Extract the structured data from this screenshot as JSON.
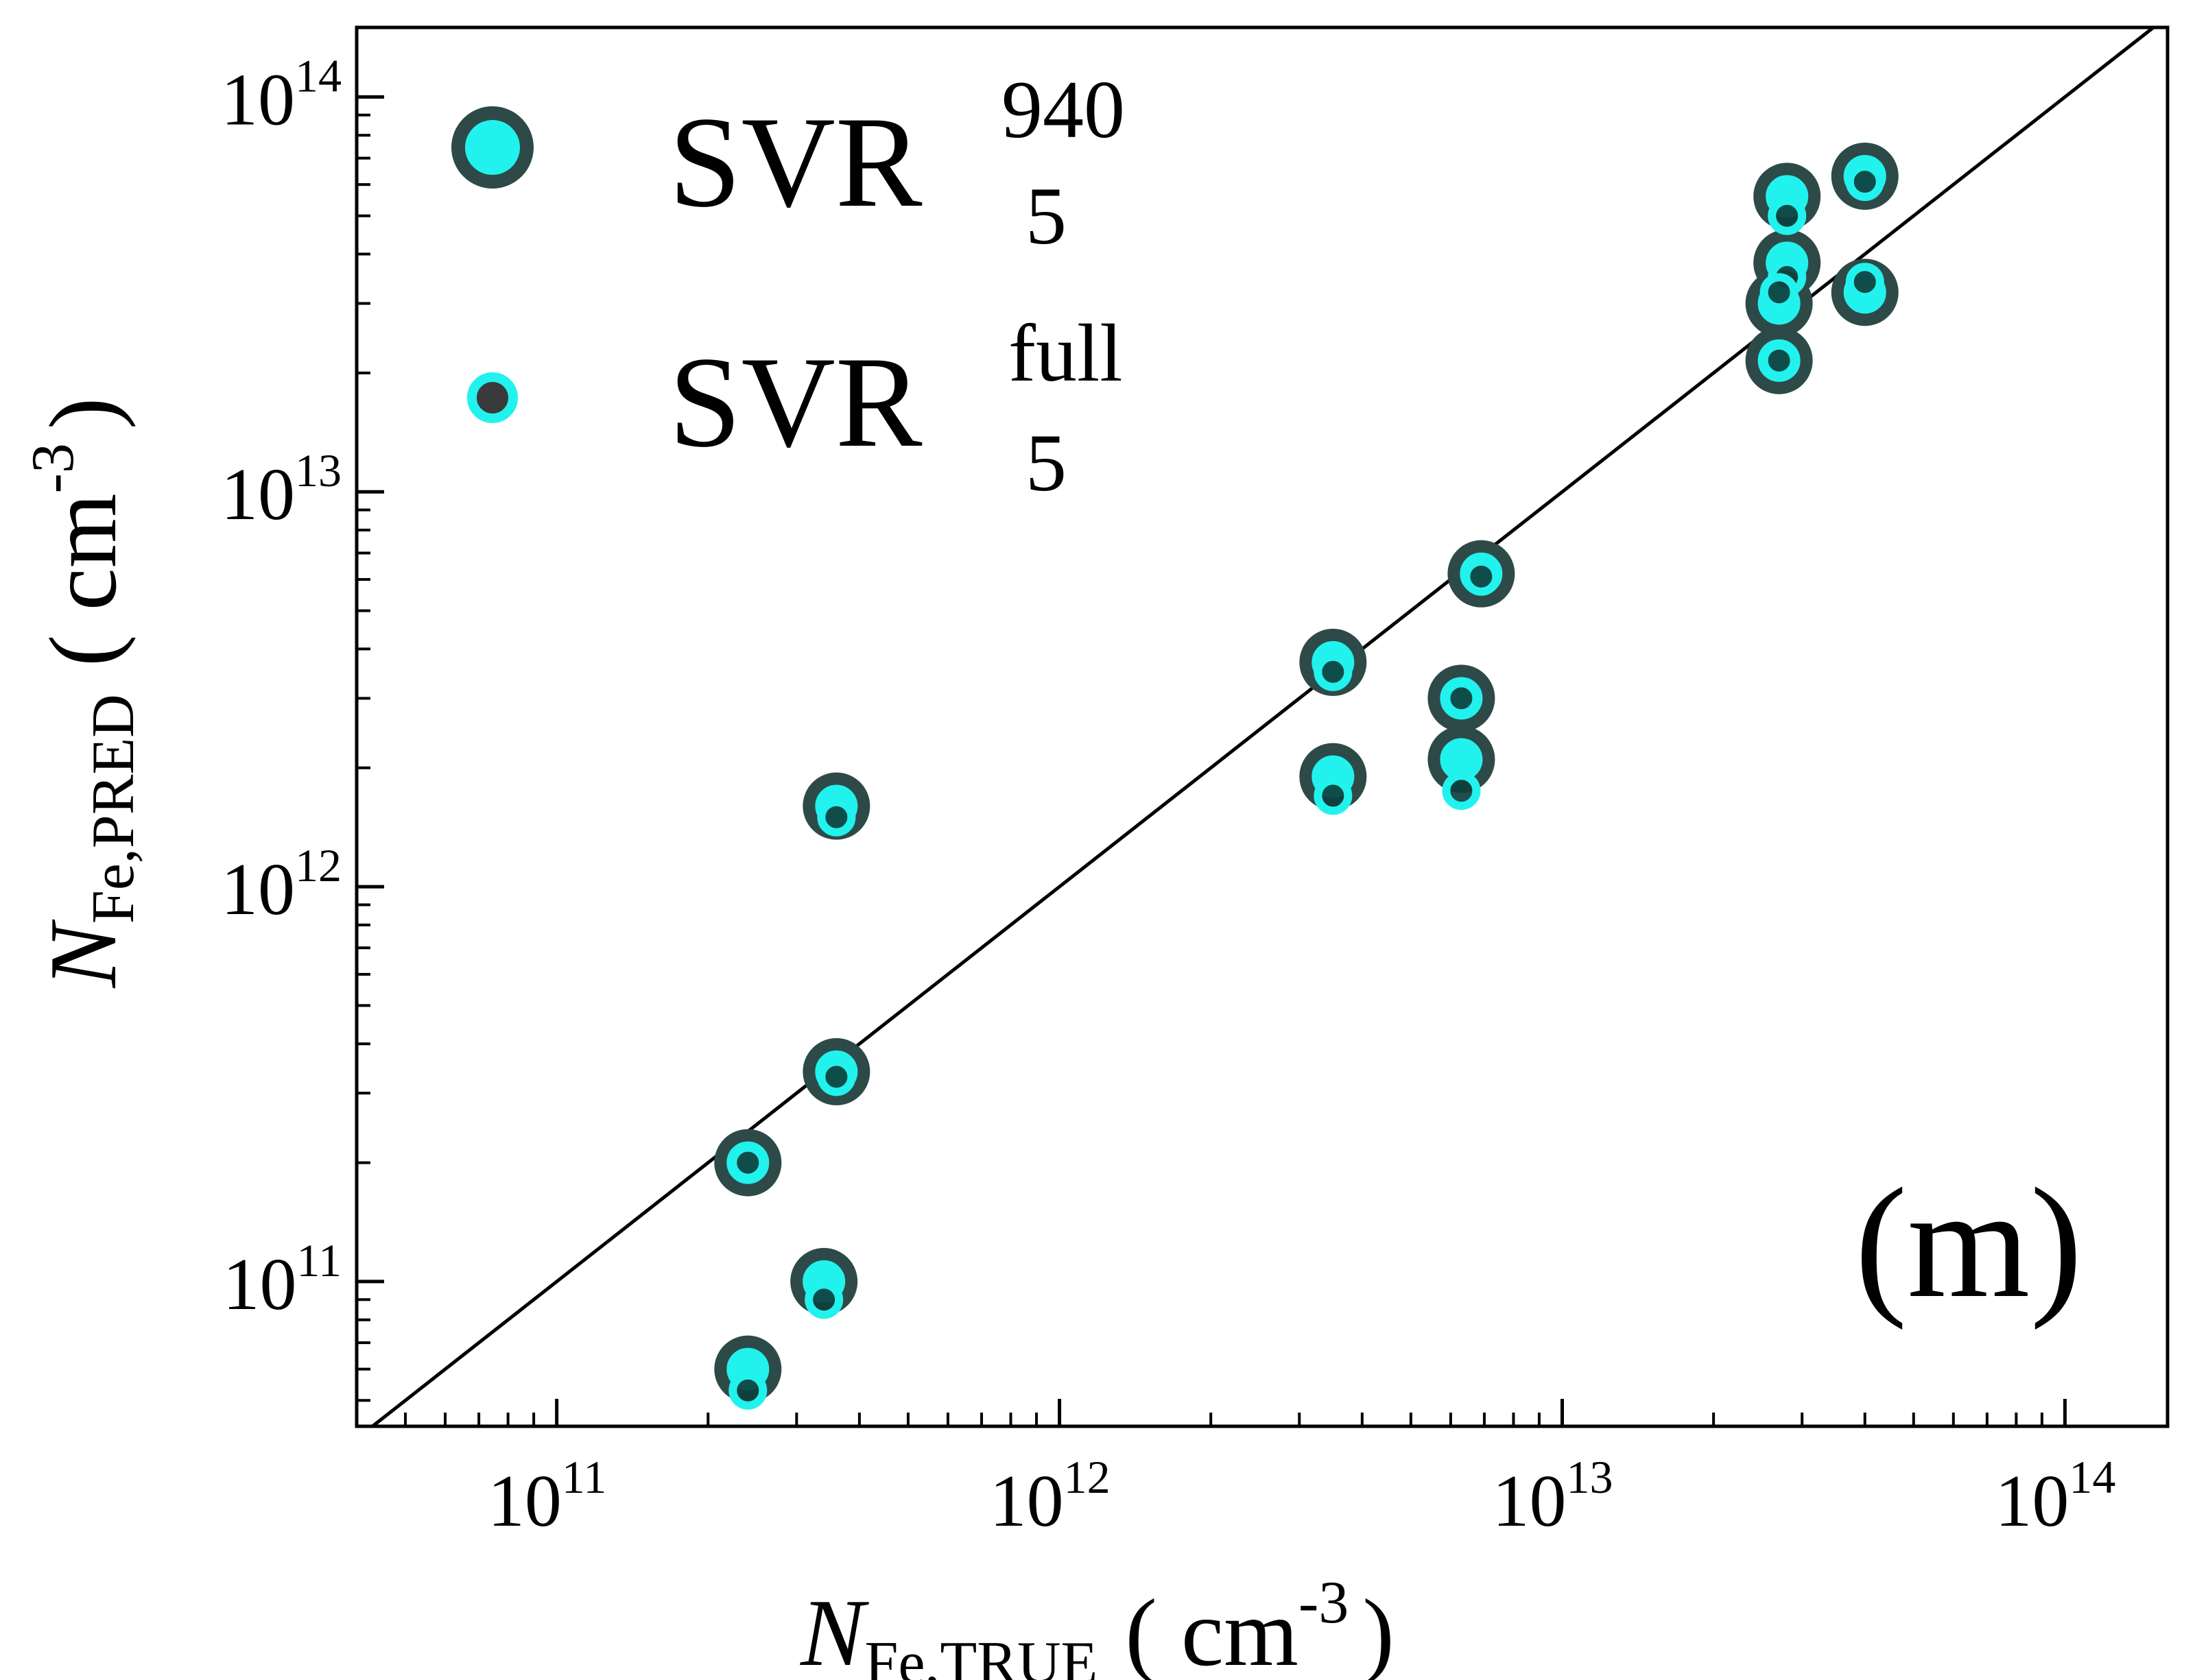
{
  "chart_data": {
    "type": "scatter",
    "x_scale": "log",
    "y_scale": "log",
    "xlim": [
      40000000000.0,
      160000000000000.0
    ],
    "ylim": [
      43000000000.0,
      150000000000000.0
    ],
    "x_ticks": [
      {
        "base": "10",
        "exp": "11",
        "value": 100000000000.0
      },
      {
        "base": "10",
        "exp": "12",
        "value": 1000000000000.0
      },
      {
        "base": "10",
        "exp": "13",
        "value": 10000000000000.0
      },
      {
        "base": "10",
        "exp": "14",
        "value": 100000000000000.0
      }
    ],
    "y_ticks": [
      {
        "base": "10",
        "exp": "11",
        "value": 100000000000.0
      },
      {
        "base": "10",
        "exp": "12",
        "value": 1000000000000.0
      },
      {
        "base": "10",
        "exp": "13",
        "value": 10000000000000.0
      },
      {
        "base": "10",
        "exp": "14",
        "value": 100000000000000.0
      }
    ],
    "xlabel": {
      "main": "N",
      "sub": "Fe,TRUE",
      "unit_open": "( cm",
      "unit_exp": "-3",
      "unit_close": ")"
    },
    "ylabel": {
      "main": "N",
      "sub": "Fe,PRED",
      "unit_open": "( cm",
      "unit_exp": "-3",
      "unit_close": ")"
    },
    "reference_line": "y = x",
    "panel_label": "(m)",
    "legend_position": "top-left",
    "grid": false,
    "series": [
      {
        "name": "SVR",
        "superscript": "940",
        "subscript": "5",
        "marker": "large",
        "fill_color": "#22F2EE",
        "edge_color": "#2E4A48",
        "points": [
          {
            "x": 240000000000.0,
            "y": 200000000000.0
          },
          {
            "x": 240000000000.0,
            "y": 60000000000.0
          },
          {
            "x": 340000000000.0,
            "y": 100000000000.0
          },
          {
            "x": 360000000000.0,
            "y": 340000000000.0
          },
          {
            "x": 360000000000.0,
            "y": 1600000000000.0
          },
          {
            "x": 3500000000000.0,
            "y": 3700000000000.0
          },
          {
            "x": 3500000000000.0,
            "y": 1900000000000.0
          },
          {
            "x": 6300000000000.0,
            "y": 3000000000000.0
          },
          {
            "x": 6300000000000.0,
            "y": 2100000000000.0
          },
          {
            "x": 6900000000000.0,
            "y": 6200000000000.0
          },
          {
            "x": 28000000000000.0,
            "y": 56000000000000.0
          },
          {
            "x": 28000000000000.0,
            "y": 38000000000000.0
          },
          {
            "x": 27000000000000.0,
            "y": 30000000000000.0
          },
          {
            "x": 27000000000000.0,
            "y": 21500000000000.0
          },
          {
            "x": 40000000000000.0,
            "y": 63000000000000.0
          },
          {
            "x": 40000000000000.0,
            "y": 32000000000000.0
          }
        ]
      },
      {
        "name": "SVR",
        "superscript": "full",
        "subscript": "5",
        "marker": "small",
        "fill_color": "#0E3F3D",
        "edge_color": "#22F2EE",
        "points": [
          {
            "x": 240000000000.0,
            "y": 200000000000.0
          },
          {
            "x": 240000000000.0,
            "y": 53000000000.0
          },
          {
            "x": 340000000000.0,
            "y": 90000000000.0
          },
          {
            "x": 360000000000.0,
            "y": 330000000000.0
          },
          {
            "x": 360000000000.0,
            "y": 1500000000000.0
          },
          {
            "x": 3500000000000.0,
            "y": 3500000000000.0
          },
          {
            "x": 3500000000000.0,
            "y": 1700000000000.0
          },
          {
            "x": 6300000000000.0,
            "y": 3000000000000.0
          },
          {
            "x": 6300000000000.0,
            "y": 1750000000000.0
          },
          {
            "x": 6900000000000.0,
            "y": 6100000000000.0
          },
          {
            "x": 28000000000000.0,
            "y": 50000000000000.0
          },
          {
            "x": 28000000000000.0,
            "y": 35000000000000.0
          },
          {
            "x": 27000000000000.0,
            "y": 32000000000000.0
          },
          {
            "x": 27000000000000.0,
            "y": 21500000000000.0
          },
          {
            "x": 40000000000000.0,
            "y": 61000000000000.0
          },
          {
            "x": 40000000000000.0,
            "y": 34000000000000.0
          }
        ]
      }
    ]
  }
}
